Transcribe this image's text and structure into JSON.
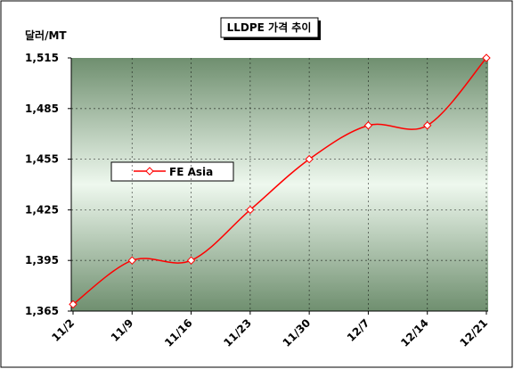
{
  "chart_data": {
    "type": "line",
    "title": "LLDPE 가격 추이",
    "y_label": "달러/MT",
    "categories": [
      "11/2",
      "11/9",
      "11/16",
      "11/23",
      "11/30",
      "12/7",
      "12/14",
      "12/21"
    ],
    "series": [
      {
        "name": "FE Asia",
        "color": "#ff0000",
        "values": [
          1369,
          1395,
          1395,
          1425,
          1455,
          1475,
          1475,
          1515
        ]
      }
    ],
    "ylim": [
      1365,
      1515
    ],
    "yticks": [
      {
        "value": 1365,
        "label": "1,365"
      },
      {
        "value": 1395,
        "label": "1,395"
      },
      {
        "value": 1425,
        "label": "1,425"
      },
      {
        "value": 1455,
        "label": "1,455"
      },
      {
        "value": 1485,
        "label": "1,485"
      },
      {
        "value": 1515,
        "label": "1,515"
      }
    ],
    "grid": true
  }
}
